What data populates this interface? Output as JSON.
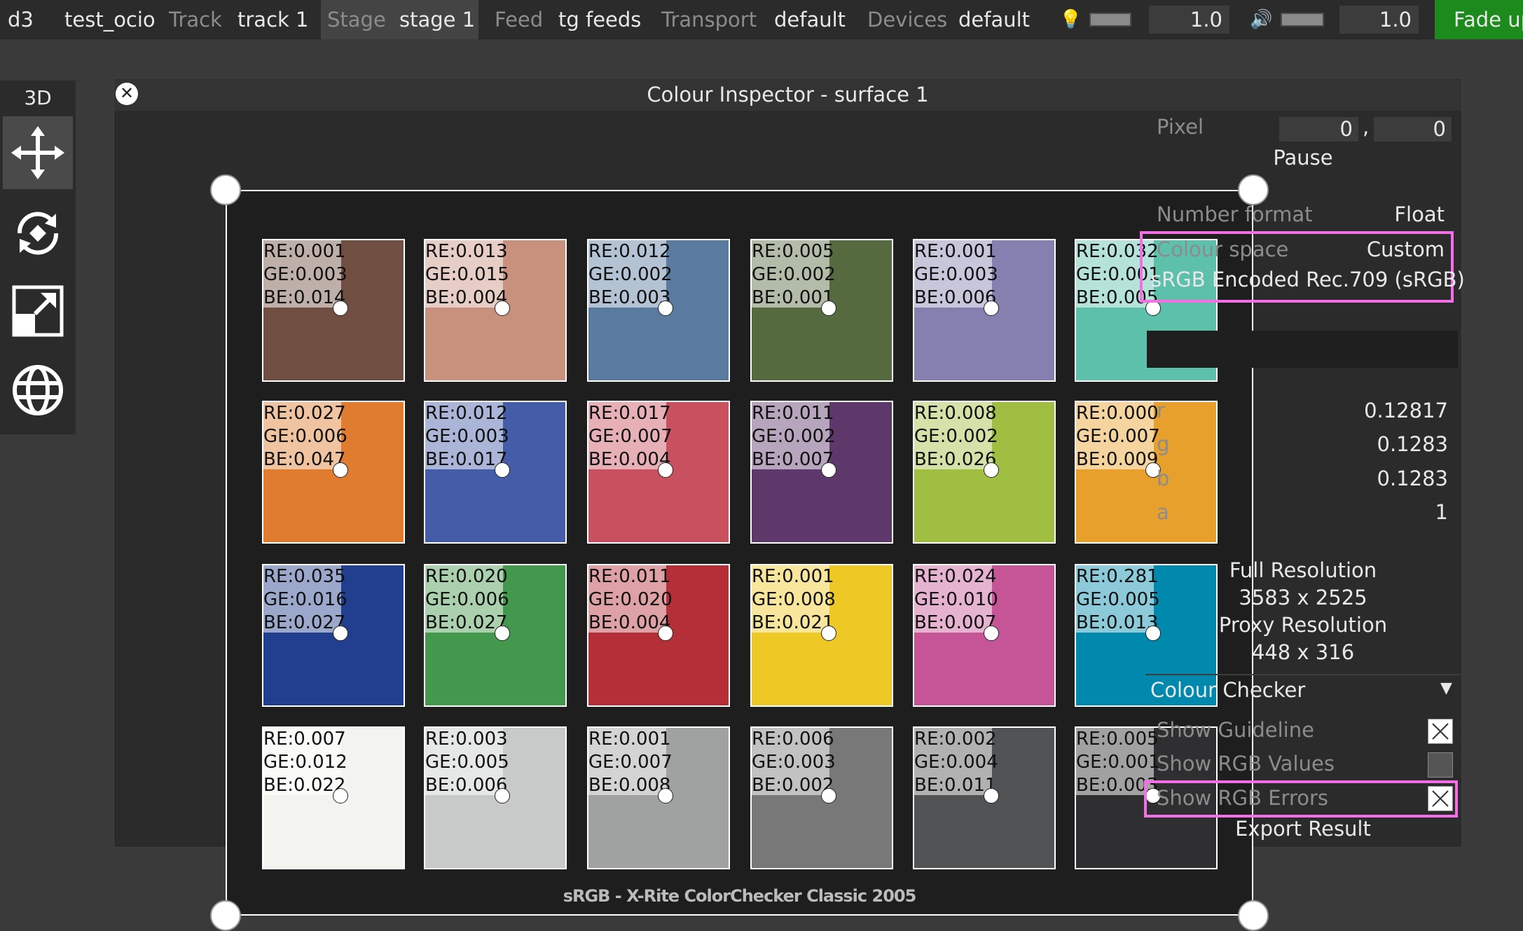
{
  "topbar": {
    "app": "d3",
    "project": "test_ocio",
    "track_label": "Track",
    "track": "track 1",
    "stage_label": "Stage",
    "stage": "stage 1",
    "feed_label": "Feed",
    "feed": "tg feeds",
    "transport_label": "Transport",
    "transport": "default",
    "devices_label": "Devices",
    "devices": "default",
    "brightness_value": "1.0",
    "volume_value": "1.0",
    "fade_up": "Fade up",
    "accent": "#1d8a1d"
  },
  "toolbar": {
    "label": "3D",
    "tools": [
      "move-icon",
      "rotate-icon",
      "scale-icon",
      "globe-icon"
    ]
  },
  "panel": {
    "title": "Colour Inspector - surface 1",
    "caption": "sRGB - X-Rite ColorChecker Classic 2005",
    "patches": [
      {
        "color": "#704f42",
        "re": "RE:0.001",
        "ge": "GE:0.003",
        "be": "BE:0.014"
      },
      {
        "color": "#c8917e",
        "re": "RE:0.013",
        "ge": "GE:0.015",
        "be": "BE:0.004"
      },
      {
        "color": "#5a7b9f",
        "re": "RE:0.012",
        "ge": "GE:0.002",
        "be": "BE:0.003"
      },
      {
        "color": "#566a40",
        "re": "RE:0.005",
        "ge": "GE:0.002",
        "be": "BE:0.001"
      },
      {
        "color": "#8580b0",
        "re": "RE:0.001",
        "ge": "GE:0.003",
        "be": "BE:0.006"
      },
      {
        "color": "#5cc0ab",
        "re": "RE:0.032",
        "ge": "GE:0.001",
        "be": "BE:0.005"
      },
      {
        "color": "#e07c30",
        "re": "RE:0.027",
        "ge": "GE:0.006",
        "be": "BE:0.047"
      },
      {
        "color": "#455ca8",
        "re": "RE:0.012",
        "ge": "GE:0.003",
        "be": "BE:0.017"
      },
      {
        "color": "#c9505f",
        "re": "RE:0.017",
        "ge": "GE:0.007",
        "be": "BE:0.004"
      },
      {
        "color": "#5e386a",
        "re": "RE:0.011",
        "ge": "GE:0.002",
        "be": "BE:0.007"
      },
      {
        "color": "#a0bf42",
        "re": "RE:0.008",
        "ge": "GE:0.002",
        "be": "BE:0.026"
      },
      {
        "color": "#e8a02c",
        "re": "RE:0.000",
        "ge": "GE:0.007",
        "be": "BE:0.009"
      },
      {
        "color": "#223e8f",
        "re": "RE:0.035",
        "ge": "GE:0.016",
        "be": "BE:0.027"
      },
      {
        "color": "#43984d",
        "re": "RE:0.020",
        "ge": "GE:0.006",
        "be": "BE:0.027"
      },
      {
        "color": "#b52f39",
        "re": "RE:0.011",
        "ge": "GE:0.020",
        "be": "BE:0.004"
      },
      {
        "color": "#eec825",
        "re": "RE:0.001",
        "ge": "GE:0.008",
        "be": "BE:0.021"
      },
      {
        "color": "#c55596",
        "re": "RE:0.024",
        "ge": "GE:0.010",
        "be": "BE:0.007"
      },
      {
        "color": "#0089ad",
        "re": "RE:0.281",
        "ge": "GE:0.005",
        "be": "BE:0.013"
      },
      {
        "color": "#f3f3f0",
        "re": "RE:0.007",
        "ge": "GE:0.012",
        "be": "BE:0.022"
      },
      {
        "color": "#c8c9c9",
        "re": "RE:0.003",
        "ge": "GE:0.005",
        "be": "BE:0.006"
      },
      {
        "color": "#a0a1a1",
        "re": "RE:0.001",
        "ge": "GE:0.007",
        "be": "BE:0.008"
      },
      {
        "color": "#787878",
        "re": "RE:0.006",
        "ge": "GE:0.003",
        "be": "BE:0.002"
      },
      {
        "color": "#525354",
        "re": "RE:0.002",
        "ge": "GE:0.004",
        "be": "BE:0.011"
      },
      {
        "color": "#2f2f31",
        "re": "RE:0.005",
        "ge": "GE:0.001",
        "be": "BE:0.003"
      }
    ]
  },
  "inspector": {
    "pixel_label": "Pixel",
    "pixel_x": "0",
    "pixel_sep": ",",
    "pixel_y": "0",
    "pause": "Pause",
    "number_format_label": "Number format",
    "number_format": "Float",
    "colour_space_label": "Colour space",
    "colour_space": "Custom",
    "colour_space_name": "sRGB Encoded Rec.709 (sRGB)",
    "r_label": "r",
    "r": "0.12817",
    "g_label": "g",
    "g": "0.1283",
    "b_label": "b",
    "b": "0.1283",
    "a_label": "a",
    "a": "1",
    "full_res_label": "Full Resolution",
    "full_res": "3583 x 2525",
    "proxy_res_label": "Proxy Resolution",
    "proxy_res": "448 x 316",
    "checker_title": "Colour Checker",
    "show_guideline": "Show Guideline",
    "show_guideline_checked": true,
    "show_rgb_values": "Show RGB Values",
    "show_rgb_values_checked": false,
    "show_rgb_errors": "Show RGB Errors",
    "show_rgb_errors_checked": true,
    "export": "Export Result",
    "highlight": "#f66ee6"
  }
}
